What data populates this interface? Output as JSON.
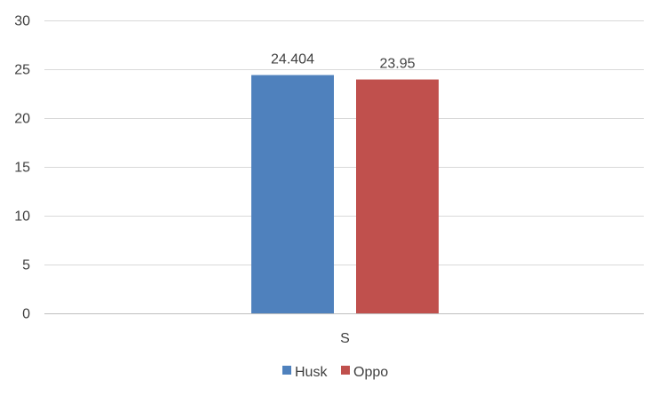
{
  "chart_data": {
    "type": "bar",
    "title": "",
    "xlabel": "",
    "ylabel": "",
    "categories": [
      "S"
    ],
    "series": [
      {
        "name": "Husk",
        "values": [
          24.404
        ],
        "color": "#4f81bd",
        "label": "24.404"
      },
      {
        "name": "Oppo",
        "values": [
          23.95
        ],
        "color": "#c0504d",
        "label": "23.95"
      }
    ],
    "ylim": [
      0,
      30
    ],
    "yticks": [
      0,
      5,
      10,
      15,
      20,
      25,
      30
    ],
    "ytick_labels": [
      "0",
      "5",
      "10",
      "15",
      "20",
      "25",
      "30"
    ],
    "grid": true,
    "legend_position": "bottom"
  }
}
